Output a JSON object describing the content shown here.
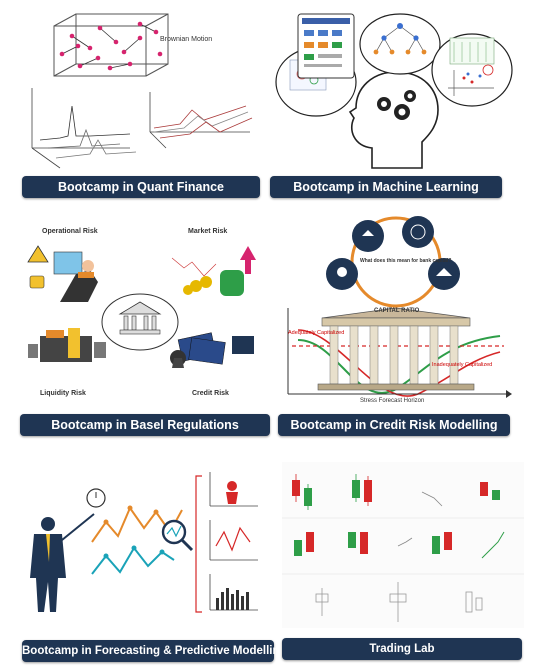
{
  "cards": [
    {
      "title": "Bootcamp in Quant Finance",
      "labels": {
        "brownian": "Brownian Motion"
      }
    },
    {
      "title": "Bootcamp in Machine Learning"
    },
    {
      "title": "Bootcamp in Basel Regulations",
      "labels": {
        "operational": "Operational Risk",
        "market": "Market Risk",
        "liquidity": "Liquidity Risk",
        "credit": "Credit Risk"
      }
    },
    {
      "title": "Bootcamp in Credit Risk Modelling",
      "labels": {
        "capital_ratio": "CAPITAL RATIO",
        "adequately": "Adequately Capitalized",
        "inadequately": "Inadequately Capitalized",
        "stress": "Stress Forecast Horizon",
        "question": "What does this mean for bank capital?"
      }
    },
    {
      "title": "Bootcamp in Forecasting & Predictive Modelling"
    },
    {
      "title": "Trading Lab"
    }
  ],
  "colors": {
    "banner": "#1f3553",
    "brown": "#8b1a1a",
    "pink": "#d6246e",
    "green": "#2e9e48",
    "red": "#d62828",
    "teal": "#1aa3b8",
    "orange": "#e58a2b"
  }
}
